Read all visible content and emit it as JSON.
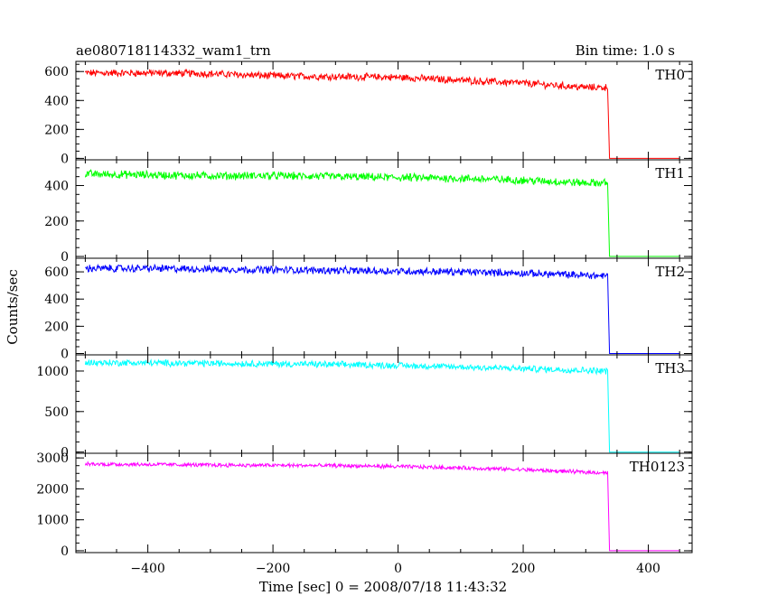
{
  "header": {
    "title": "ae080718114332_wam1_trn",
    "bin_time": "Bin time: 1.0 s"
  },
  "chart_data": {
    "type": "line",
    "title": "ae080718114332_wam1_trn",
    "xlabel": "Time [sec] 0 = 2008/07/18 11:43:32",
    "ylabel": "Counts/sec",
    "xlim": [
      -515,
      470
    ],
    "x_ticks": [
      -400,
      -200,
      0,
      200,
      400
    ],
    "x_tick_labels": [
      "−400",
      "−200",
      "0",
      "200",
      "400"
    ],
    "series": [
      {
        "name": "TH0",
        "color": "#ff0000",
        "ylim": [
          -10,
          670
        ],
        "y_ticks": [
          0,
          200,
          400,
          600
        ],
        "y_tick_labels": [
          "0",
          "200",
          "400",
          "600"
        ],
        "x": [
          -500,
          -400,
          -300,
          -200,
          -100,
          0,
          100,
          200,
          300,
          335,
          338,
          340,
          450
        ],
        "values": [
          590,
          590,
          585,
          570,
          565,
          560,
          540,
          520,
          490,
          490,
          0,
          0,
          0
        ],
        "noise": 22
      },
      {
        "name": "TH1",
        "color": "#00ff00",
        "ylim": [
          -10,
          545
        ],
        "y_ticks": [
          0,
          200,
          400
        ],
        "y_tick_labels": [
          "0",
          "200",
          "400"
        ],
        "x": [
          -500,
          -400,
          -300,
          -200,
          -100,
          0,
          100,
          200,
          300,
          335,
          338,
          340,
          450
        ],
        "values": [
          465,
          460,
          455,
          455,
          450,
          445,
          440,
          430,
          415,
          415,
          0,
          0,
          0
        ],
        "noise": 20
      },
      {
        "name": "TH2",
        "color": "#0000ff",
        "ylim": [
          -10,
          700
        ],
        "y_ticks": [
          0,
          200,
          400,
          600
        ],
        "y_tick_labels": [
          "0",
          "200",
          "400",
          "600"
        ],
        "x": [
          -500,
          -400,
          -300,
          -200,
          -100,
          0,
          100,
          200,
          300,
          335,
          338,
          340,
          450
        ],
        "values": [
          625,
          625,
          620,
          615,
          610,
          605,
          600,
          590,
          575,
          570,
          0,
          0,
          0
        ],
        "noise": 24
      },
      {
        "name": "TH3",
        "color": "#00ffff",
        "ylim": [
          -15,
          1200
        ],
        "y_ticks": [
          0,
          500,
          1000
        ],
        "y_tick_labels": [
          "0",
          "500",
          "1000"
        ],
        "x": [
          -500,
          -400,
          -300,
          -200,
          -100,
          0,
          100,
          200,
          300,
          335,
          338,
          340,
          450
        ],
        "values": [
          1105,
          1100,
          1095,
          1090,
          1080,
          1070,
          1050,
          1030,
          1010,
          1000,
          0,
          0,
          0
        ],
        "noise": 35
      },
      {
        "name": "TH0123",
        "color": "#ff00ff",
        "ylim": [
          -60,
          3150
        ],
        "y_ticks": [
          0,
          1000,
          2000,
          3000
        ],
        "y_tick_labels": [
          "0",
          "1000",
          "2000",
          "3000"
        ],
        "x": [
          -500,
          -400,
          -300,
          -200,
          -100,
          0,
          100,
          200,
          300,
          335,
          338,
          340,
          450
        ],
        "values": [
          2800,
          2790,
          2770,
          2760,
          2750,
          2720,
          2680,
          2620,
          2540,
          2520,
          0,
          0,
          0
        ],
        "noise": 55
      }
    ]
  }
}
